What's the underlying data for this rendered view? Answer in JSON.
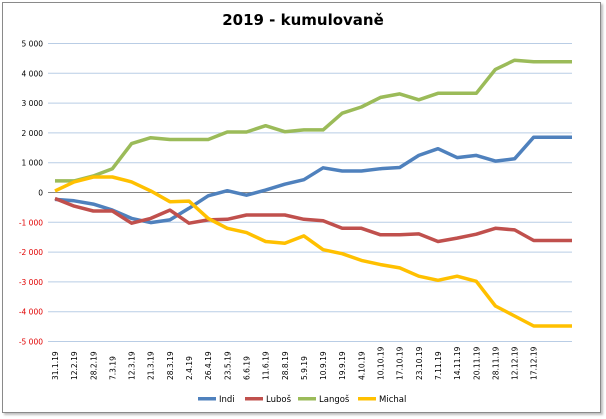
{
  "chart_data": {
    "type": "line",
    "title": "2019 - kumulovaně",
    "xlabel": "",
    "ylabel": "",
    "ylim": [
      -5000,
      5000
    ],
    "ytick_step": 1000,
    "yticks": [
      "5 000",
      "4 000",
      "3 000",
      "2 000",
      "1 000",
      "0",
      "-1 000",
      "-2 000",
      "-3 000",
      "-4 000",
      "-5 000"
    ],
    "grid": true,
    "legend_position": "bottom",
    "negative_tick_color": "#e00000",
    "positive_tick_color": "#000000",
    "categories": [
      "31.1.19",
      "12.2.19",
      "28.2.19",
      "7.3.19",
      "12.3.19",
      "21.3.19",
      "28.3.19",
      "2.4.19",
      "26.4.19",
      "23.5.19",
      "6.6.19",
      "11.6.19",
      "28.8.19",
      "5.9.19",
      "10.9.19",
      "19.9.19",
      "4.10.19",
      "10.10.19",
      "17.10.19",
      "23.10.19",
      "7.11.19",
      "14.11.19",
      "20.11.19",
      "28.11.19",
      "12.12.19",
      "17.12.19",
      "",
      ""
    ],
    "series": [
      {
        "name": "Indi",
        "color": "#4f81bd",
        "values": [
          -230,
          -280,
          -390,
          -590,
          -870,
          -1010,
          -920,
          -530,
          -110,
          60,
          -90,
          80,
          280,
          430,
          830,
          720,
          720,
          800,
          840,
          1245,
          1470,
          1170,
          1245,
          1055,
          1130,
          1855,
          1855,
          1855
        ]
      },
      {
        "name": "Luboš",
        "color": "#c0504d",
        "values": [
          -200,
          -455,
          -620,
          -620,
          -1030,
          -870,
          -590,
          -1030,
          -920,
          -900,
          -755,
          -755,
          -755,
          -900,
          -945,
          -1200,
          -1200,
          -1420,
          -1420,
          -1390,
          -1645,
          -1530,
          -1400,
          -1200,
          -1255,
          -1610,
          -1610,
          -1610
        ]
      },
      {
        "name": "Langoš",
        "color": "#9bbb59",
        "values": [
          390,
          390,
          555,
          800,
          1640,
          1840,
          1780,
          1780,
          1780,
          2030,
          2030,
          2240,
          2040,
          2100,
          2100,
          2660,
          2870,
          3190,
          3310,
          3110,
          3330,
          3330,
          3330,
          4130,
          4440,
          4390,
          4390,
          4390
        ]
      },
      {
        "name": "Michal",
        "color": "#ffc000",
        "values": [
          55,
          355,
          520,
          520,
          355,
          55,
          -310,
          -290,
          -870,
          -1200,
          -1345,
          -1645,
          -1700,
          -1455,
          -1920,
          -2055,
          -2280,
          -2420,
          -2530,
          -2810,
          -2945,
          -2810,
          -2980,
          -3810,
          -4145,
          -4480,
          -4480,
          -4480
        ]
      }
    ]
  }
}
